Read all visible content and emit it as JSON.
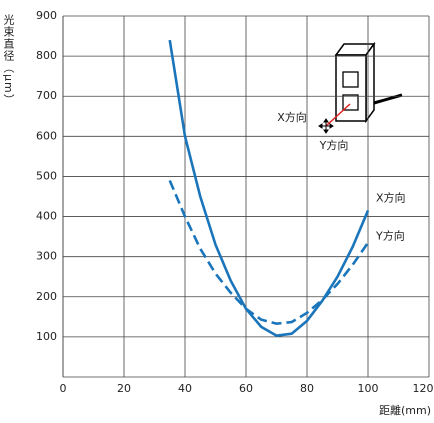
{
  "chart_data": {
    "type": "line",
    "y_label": "光束直径（μm）",
    "x_label": "距離(mm)",
    "x": [
      35,
      40,
      45,
      50,
      55,
      60,
      65,
      70,
      75,
      80,
      85,
      90,
      95,
      100
    ],
    "series": [
      {
        "name": "X方向",
        "color": "#1a75bb",
        "dash": false,
        "values": [
          840,
          600,
          450,
          330,
          240,
          170,
          125,
          103,
          108,
          140,
          190,
          250,
          325,
          415
        ]
      },
      {
        "name": "Y方向",
        "color": "#1a75bb",
        "dash": true,
        "values": [
          490,
          400,
          320,
          258,
          210,
          170,
          143,
          133,
          137,
          160,
          192,
          232,
          280,
          335
        ]
      }
    ],
    "xlim": [
      0,
      120
    ],
    "xticks": [
      0,
      20,
      40,
      60,
      80,
      100,
      120
    ],
    "ylim": [
      0,
      900
    ],
    "yticks": [
      100,
      200,
      300,
      400,
      500,
      600,
      700,
      800,
      900
    ],
    "grid": true,
    "annotations": [
      "X方向",
      "Y方向"
    ]
  }
}
